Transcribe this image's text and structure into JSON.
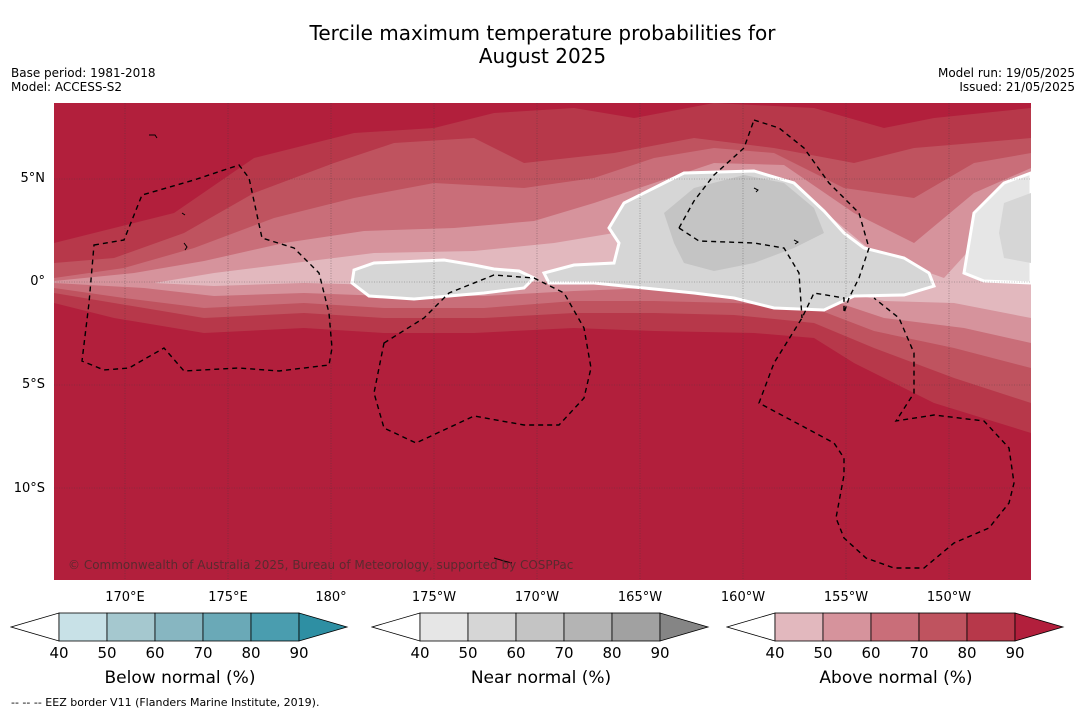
{
  "title_line1": "Tercile maximum temperature probabilities for",
  "title_line2": "August 2025",
  "meta_left": {
    "base_period": "Base period: 1981-2018",
    "model": "Model: ACCESS-S2"
  },
  "meta_right": {
    "model_run": "Model run: 19/05/2025",
    "issued": "Issued: 21/05/2025"
  },
  "lat_labels": [
    "5°N",
    "0°",
    "5°S",
    "10°S"
  ],
  "lon_labels": [
    "170°E",
    "175°E",
    "180°",
    "175°W",
    "170°W",
    "165°W",
    "160°W",
    "155°W",
    "150°W"
  ],
  "copyright": "© Commonwealth of Australia 2025, Bureau of Meteorology, supported by COSPPac",
  "colorbars": [
    {
      "label": "Below normal (%)",
      "ticks": [
        "40",
        "50",
        "60",
        "70",
        "80",
        "90"
      ],
      "colors": [
        "#ffffff",
        "#c8e1e7",
        "#a5c8cf",
        "#87b6c1",
        "#6aa9b7",
        "#4a9daf",
        "#2e8fa3"
      ]
    },
    {
      "label": "Near normal (%)",
      "ticks": [
        "40",
        "50",
        "60",
        "70",
        "80",
        "90"
      ],
      "colors": [
        "#ffffff",
        "#e6e6e6",
        "#d6d6d6",
        "#c4c4c4",
        "#b4b4b4",
        "#a1a1a1",
        "#858585"
      ]
    },
    {
      "label": "Above normal (%)",
      "ticks": [
        "40",
        "50",
        "60",
        "70",
        "80",
        "90"
      ],
      "colors": [
        "#ffffff",
        "#e2b8be",
        "#d6939c",
        "#c96e79",
        "#bf535f",
        "#b7384a",
        "#b21f3c"
      ]
    }
  ],
  "footnote": "--  --  -- EEZ border V11 (Flanders Marine Institute, 2019)."
}
